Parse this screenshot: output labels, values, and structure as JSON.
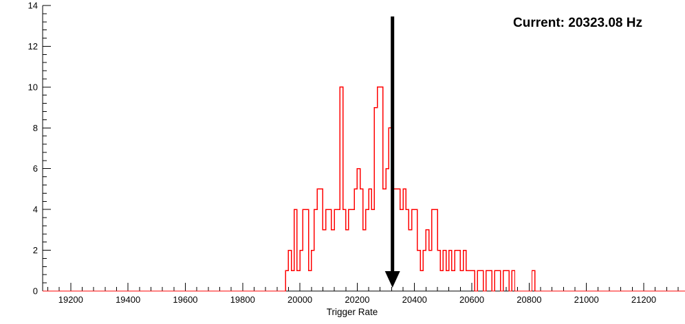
{
  "annotation": {
    "text": "Current: 20323.08 Hz",
    "color": "#000000"
  },
  "chart_data": {
    "type": "histogram-step",
    "title": "",
    "xlabel": "Trigger Rate",
    "ylabel": "",
    "x_range": [
      19102,
      21344
    ],
    "y_range": [
      0,
      14
    ],
    "x_major_ticks": [
      19200,
      19400,
      19600,
      19800,
      20000,
      20200,
      20400,
      20600,
      20800,
      21000,
      21200
    ],
    "x_minor_step": 40,
    "y_major_ticks": [
      0,
      2,
      4,
      6,
      8,
      10,
      12,
      14
    ],
    "y_minor_step": 0.4,
    "grid": false,
    "legend": "none",
    "series_color": "#ff0000",
    "axis_color": "#000000",
    "bins": {
      "start": 19950,
      "width": 10,
      "counts": [
        1,
        2,
        1,
        4,
        1,
        2,
        4,
        4,
        1,
        2,
        4,
        5,
        5,
        3,
        4,
        4,
        3,
        4,
        4,
        10,
        4,
        3,
        4,
        4,
        5,
        6,
        5,
        3,
        4,
        5,
        4,
        9,
        10,
        10,
        5,
        6,
        8,
        5,
        5,
        5,
        4,
        5,
        4,
        3,
        4,
        4,
        2,
        1,
        2,
        3,
        2,
        4,
        4,
        2,
        1,
        2,
        1,
        2,
        1,
        2,
        2,
        1,
        2,
        1,
        1,
        1,
        0,
        1,
        1,
        0,
        1,
        1,
        0,
        1,
        1,
        0,
        1,
        1,
        0,
        1,
        0,
        0,
        0,
        0,
        0,
        0,
        1,
        0,
        0,
        0,
        0,
        0,
        0,
        0,
        0
      ]
    },
    "marker": {
      "type": "down-arrow",
      "x": 20323.08,
      "color": "#000000"
    }
  }
}
